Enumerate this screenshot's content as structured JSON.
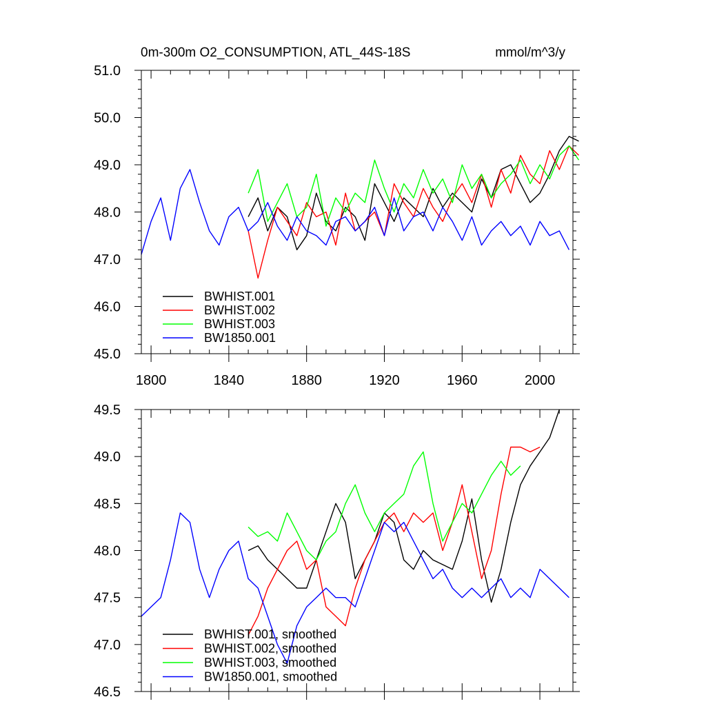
{
  "chart_data": [
    {
      "type": "line",
      "title": "0m-300m O2_CONSUMPTION, ATL_44S-18S",
      "units": "mmol/m^3/y",
      "xlabel": "",
      "ylabel": "",
      "xlim": [
        1795,
        2017
      ],
      "ylim": [
        45.0,
        51.0
      ],
      "xticks": [
        1800,
        1840,
        1880,
        1920,
        1960,
        2000
      ],
      "xtick_labels": [
        "1800",
        "1840",
        "1880",
        "1920",
        "1960",
        "2000"
      ],
      "yticks": [
        45.0,
        46.0,
        47.0,
        48.0,
        49.0,
        50.0,
        51.0
      ],
      "ytick_labels": [
        "45.0",
        "46.0",
        "47.0",
        "48.0",
        "49.0",
        "50.0",
        "51.0"
      ],
      "legend_position": "bottom-left",
      "series": [
        {
          "name": "BWHIST.001",
          "color": "#000000",
          "x_start": 1850,
          "x_step": 5,
          "values": [
            47.9,
            48.3,
            47.6,
            48.1,
            47.9,
            47.2,
            47.5,
            48.4,
            47.8,
            47.6,
            48.1,
            47.9,
            47.4,
            48.6,
            48.2,
            47.8,
            48.3,
            48.1,
            47.9,
            48.5,
            48.1,
            48.4,
            48.2,
            48.0,
            48.7,
            48.3,
            48.9,
            49.0,
            48.6,
            48.2,
            48.4,
            48.8,
            49.3,
            49.6,
            49.5
          ]
        },
        {
          "name": "BWHIST.002",
          "color": "#ff0000",
          "x_start": 1850,
          "x_step": 5,
          "values": [
            47.6,
            46.6,
            47.4,
            48.1,
            47.8,
            47.5,
            48.2,
            47.9,
            48.0,
            47.3,
            48.4,
            47.6,
            47.8,
            48.0,
            47.5,
            48.6,
            48.2,
            47.9,
            48.5,
            48.1,
            47.8,
            48.3,
            48.6,
            48.2,
            48.8,
            48.1,
            48.9,
            48.4,
            49.2,
            48.8,
            48.6,
            49.3,
            48.9,
            49.4,
            49.2
          ]
        },
        {
          "name": "BWHIST.003",
          "color": "#00ff00",
          "x_start": 1850,
          "x_step": 5,
          "values": [
            48.4,
            48.9,
            47.8,
            48.2,
            48.6,
            47.9,
            48.1,
            48.8,
            47.7,
            48.3,
            48.0,
            48.4,
            48.2,
            49.1,
            48.5,
            48.0,
            48.6,
            48.3,
            48.9,
            48.4,
            48.7,
            48.2,
            49.0,
            48.5,
            48.8,
            48.3,
            48.6,
            48.8,
            49.1,
            48.6,
            49.0,
            48.7,
            49.2,
            49.4,
            49.1
          ]
        },
        {
          "name": "BW1850.001",
          "color": "#0000ff",
          "x_start": 1795,
          "x_step": 5,
          "values": [
            47.1,
            47.8,
            48.3,
            47.4,
            48.5,
            48.9,
            48.2,
            47.6,
            47.3,
            47.9,
            48.1,
            47.6,
            47.8,
            48.2,
            47.7,
            47.4,
            47.9,
            47.6,
            47.5,
            47.3,
            47.8,
            47.9,
            47.6,
            47.8,
            48.1,
            47.5,
            48.3,
            47.6,
            47.9,
            48.0,
            47.6,
            48.1,
            47.8,
            47.4,
            47.9,
            47.3,
            47.6,
            47.8,
            47.5,
            47.7,
            47.3,
            47.8,
            47.5,
            47.6,
            47.2
          ]
        }
      ]
    },
    {
      "type": "line",
      "title": "",
      "xlabel": "",
      "ylabel": "",
      "xlim": [
        1795,
        2017
      ],
      "ylim": [
        46.5,
        49.5
      ],
      "xticks": [
        1800,
        1840,
        1880,
        1920,
        1960,
        2000
      ],
      "yticks": [
        46.5,
        47.0,
        47.5,
        48.0,
        48.5,
        49.0,
        49.5
      ],
      "ytick_labels": [
        "46.5",
        "47.0",
        "47.5",
        "48.0",
        "48.5",
        "49.0",
        "49.5"
      ],
      "legend_position": "bottom-left",
      "series": [
        {
          "name": "BWHIST.001, smoothed",
          "color": "#000000",
          "x_start": 1850,
          "x_step": 5,
          "values": [
            48.0,
            48.05,
            47.9,
            47.8,
            47.7,
            47.6,
            47.6,
            47.9,
            48.2,
            48.5,
            48.3,
            47.7,
            47.9,
            48.1,
            48.4,
            48.3,
            47.9,
            47.8,
            48.0,
            47.9,
            47.85,
            47.8,
            48.1,
            48.55,
            47.9,
            47.45,
            47.8,
            48.3,
            48.7,
            48.9,
            49.05,
            49.2,
            49.5
          ]
        },
        {
          "name": "BWHIST.002, smoothed",
          "color": "#ff0000",
          "x_start": 1850,
          "x_step": 5,
          "values": [
            47.1,
            47.3,
            47.6,
            47.8,
            48.0,
            48.1,
            47.8,
            47.9,
            47.4,
            47.3,
            47.2,
            47.6,
            47.9,
            48.1,
            48.3,
            48.4,
            48.2,
            48.4,
            48.3,
            48.4,
            48.0,
            48.3,
            48.7,
            48.2,
            47.7,
            48.0,
            48.6,
            49.1,
            49.1,
            49.05,
            49.1
          ]
        },
        {
          "name": "BWHIST.003, smoothed",
          "color": "#00ff00",
          "x_start": 1850,
          "x_step": 5,
          "values": [
            48.25,
            48.15,
            48.2,
            48.1,
            48.4,
            48.2,
            48.0,
            47.9,
            48.1,
            48.2,
            48.5,
            48.7,
            48.4,
            48.2,
            48.4,
            48.5,
            48.6,
            48.9,
            49.05,
            48.5,
            48.1,
            48.3,
            48.5,
            48.4,
            48.6,
            48.8,
            48.95,
            48.8,
            48.9
          ]
        },
        {
          "name": "BW1850.001, smoothed",
          "color": "#0000ff",
          "x_start": 1795,
          "x_step": 5,
          "values": [
            47.3,
            47.4,
            47.5,
            47.9,
            48.4,
            48.3,
            47.8,
            47.5,
            47.8,
            48.0,
            48.1,
            47.7,
            47.6,
            47.3,
            47.0,
            46.8,
            47.2,
            47.4,
            47.5,
            47.6,
            47.5,
            47.5,
            47.4,
            47.7,
            48.0,
            48.3,
            48.2,
            48.3,
            48.1,
            47.9,
            47.7,
            47.8,
            47.6,
            47.5,
            47.6,
            47.5,
            47.6,
            47.7,
            47.5,
            47.6,
            47.5,
            47.8,
            47.7,
            47.6,
            47.5
          ]
        }
      ]
    }
  ]
}
